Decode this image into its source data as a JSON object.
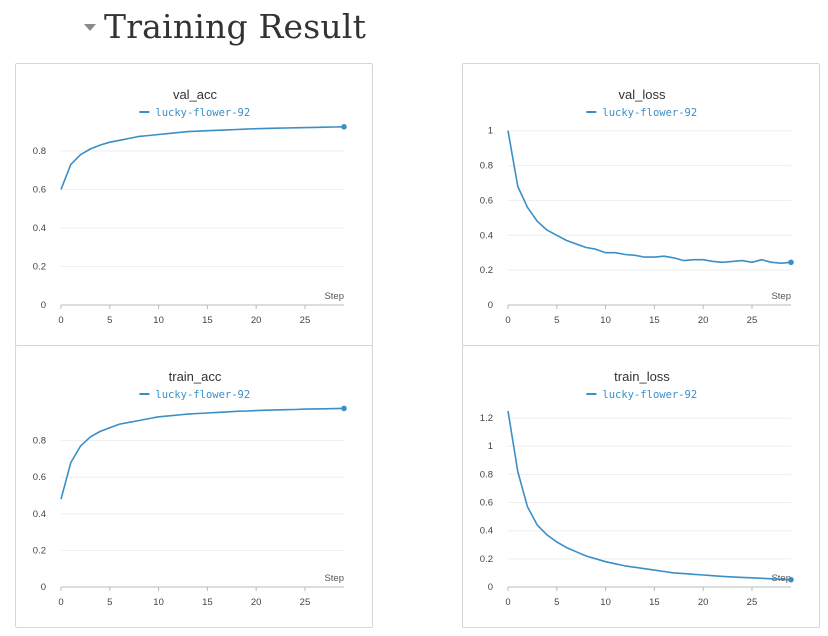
{
  "section": {
    "title": "Training Result"
  },
  "chart_data": [
    {
      "type": "line",
      "title": "val_acc",
      "xlabel": "Step",
      "ylabel": "",
      "xlim": [
        0,
        29
      ],
      "ylim": [
        0,
        0.95
      ],
      "xticks": [
        "0",
        "5",
        "10",
        "15",
        "20",
        "25"
      ],
      "yticks": [
        "0",
        "0.2",
        "0.4",
        "0.6",
        "0.8"
      ],
      "grid": true,
      "legend": "top-center",
      "color": "#3a8fc8",
      "series": [
        {
          "name": "lucky-flower-92",
          "x": [
            0,
            1,
            2,
            3,
            4,
            5,
            6,
            7,
            8,
            9,
            10,
            11,
            12,
            13,
            14,
            15,
            16,
            17,
            18,
            19,
            20,
            21,
            22,
            23,
            24,
            25,
            26,
            27,
            28,
            29
          ],
          "y": [
            0.6,
            0.73,
            0.78,
            0.81,
            0.83,
            0.845,
            0.855,
            0.865,
            0.875,
            0.88,
            0.885,
            0.89,
            0.895,
            0.9,
            0.902,
            0.905,
            0.907,
            0.909,
            0.911,
            0.913,
            0.915,
            0.917,
            0.918,
            0.919,
            0.92,
            0.921,
            0.922,
            0.923,
            0.924,
            0.925
          ]
        }
      ]
    },
    {
      "type": "line",
      "title": "val_loss",
      "xlabel": "Step",
      "ylabel": "",
      "xlim": [
        0,
        29
      ],
      "ylim": [
        0,
        1.05
      ],
      "xticks": [
        "0",
        "5",
        "10",
        "15",
        "20",
        "25"
      ],
      "yticks": [
        "0",
        "0.2",
        "0.4",
        "0.6",
        "0.8",
        "1"
      ],
      "grid": true,
      "legend": "top-center",
      "color": "#3a8fc8",
      "series": [
        {
          "name": "lucky-flower-92",
          "x": [
            0,
            1,
            2,
            3,
            4,
            5,
            6,
            7,
            8,
            9,
            10,
            11,
            12,
            13,
            14,
            15,
            16,
            17,
            18,
            19,
            20,
            21,
            22,
            23,
            24,
            25,
            26,
            27,
            28,
            29
          ],
          "y": [
            1.0,
            0.68,
            0.56,
            0.48,
            0.43,
            0.4,
            0.37,
            0.35,
            0.33,
            0.32,
            0.3,
            0.3,
            0.29,
            0.285,
            0.275,
            0.275,
            0.28,
            0.27,
            0.255,
            0.26,
            0.26,
            0.25,
            0.245,
            0.25,
            0.255,
            0.245,
            0.26,
            0.245,
            0.24,
            0.245
          ]
        }
      ]
    },
    {
      "type": "line",
      "title": "train_acc",
      "xlabel": "Step",
      "ylabel": "",
      "xlim": [
        0,
        29
      ],
      "ylim": [
        0,
        1.0
      ],
      "xticks": [
        "0",
        "5",
        "10",
        "15",
        "20",
        "25"
      ],
      "yticks": [
        "0",
        "0.2",
        "0.4",
        "0.6",
        "0.8"
      ],
      "grid": true,
      "legend": "top-center",
      "color": "#3a8fc8",
      "series": [
        {
          "name": "lucky-flower-92",
          "x": [
            0,
            1,
            2,
            3,
            4,
            5,
            6,
            7,
            8,
            9,
            10,
            11,
            12,
            13,
            14,
            15,
            16,
            17,
            18,
            19,
            20,
            21,
            22,
            23,
            24,
            25,
            26,
            27,
            28,
            29
          ],
          "y": [
            0.48,
            0.68,
            0.77,
            0.82,
            0.85,
            0.87,
            0.89,
            0.9,
            0.91,
            0.92,
            0.93,
            0.935,
            0.94,
            0.945,
            0.948,
            0.951,
            0.954,
            0.957,
            0.96,
            0.962,
            0.964,
            0.966,
            0.968,
            0.969,
            0.97,
            0.972,
            0.973,
            0.974,
            0.975,
            0.976
          ]
        }
      ]
    },
    {
      "type": "line",
      "title": "train_loss",
      "xlabel": "Step",
      "ylabel": "",
      "xlim": [
        0,
        29
      ],
      "ylim": [
        0,
        1.3
      ],
      "xticks": [
        "0",
        "5",
        "10",
        "15",
        "20",
        "25"
      ],
      "yticks": [
        "0",
        "0.2",
        "0.4",
        "0.6",
        "0.8",
        "1",
        "1.2"
      ],
      "grid": true,
      "legend": "top-center",
      "color": "#3a8fc8",
      "series": [
        {
          "name": "lucky-flower-92",
          "x": [
            0,
            1,
            2,
            3,
            4,
            5,
            6,
            7,
            8,
            9,
            10,
            11,
            12,
            13,
            14,
            15,
            16,
            17,
            18,
            19,
            20,
            21,
            22,
            23,
            24,
            25,
            26,
            27,
            28,
            29
          ],
          "y": [
            1.25,
            0.82,
            0.57,
            0.44,
            0.37,
            0.32,
            0.28,
            0.25,
            0.22,
            0.2,
            0.18,
            0.165,
            0.15,
            0.14,
            0.13,
            0.12,
            0.11,
            0.1,
            0.095,
            0.09,
            0.085,
            0.08,
            0.075,
            0.072,
            0.068,
            0.065,
            0.062,
            0.058,
            0.055,
            0.052
          ]
        }
      ]
    }
  ]
}
